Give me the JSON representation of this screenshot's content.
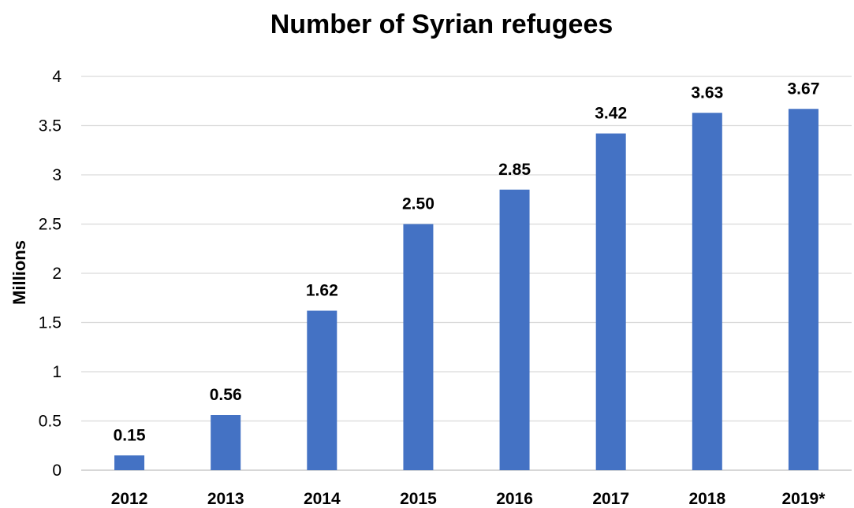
{
  "chart_data": {
    "type": "bar",
    "title": "Number of Syrian refugees",
    "xlabel": "",
    "ylabel": "Millions",
    "categories": [
      "2012",
      "2013",
      "2014",
      "2015",
      "2016",
      "2017",
      "2018",
      "2019*"
    ],
    "values": [
      0.15,
      0.56,
      1.62,
      2.5,
      2.85,
      3.42,
      3.63,
      3.67
    ],
    "data_labels": [
      "0.15",
      "0.56",
      "1.62",
      "2.50",
      "2.85",
      "3.42",
      "3.63",
      "3.67"
    ],
    "ylim": [
      0,
      4
    ],
    "yticks": [
      0,
      0.5,
      1,
      1.5,
      2,
      2.5,
      3,
      3.5,
      4
    ],
    "ytick_labels": [
      "0",
      "0.5",
      "1",
      "1.5",
      "2",
      "2.5",
      "3",
      "3.5",
      "4"
    ],
    "grid": true,
    "legend": "none",
    "bar_color": "#4472c4"
  }
}
